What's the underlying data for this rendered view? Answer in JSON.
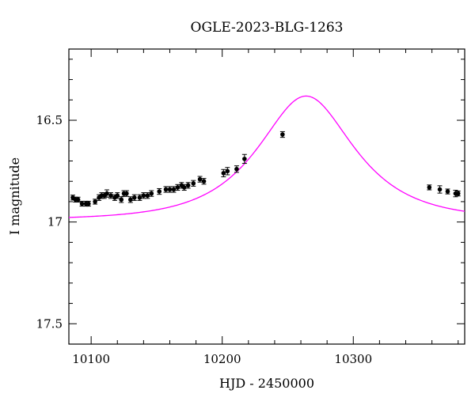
{
  "chart_data": {
    "type": "scatter",
    "title": "OGLE-2023-BLG-1263",
    "xlabel": "HJD - 2450000",
    "ylabel": "I magnitude",
    "xlim": [
      10083,
      10385
    ],
    "ylim": [
      17.6,
      16.15
    ],
    "y_inverted": true,
    "grid": false,
    "x_major_ticks": [
      10100,
      10200,
      10300
    ],
    "x_tick_labels": [
      "10100",
      "10200",
      "10300"
    ],
    "y_major_ticks": [
      16.5,
      17,
      17.5
    ],
    "y_tick_labels": [
      "16.5",
      "17",
      "17.5"
    ],
    "series": [
      {
        "kind": "data",
        "marker": "filled-circle-with-errorbar",
        "color": "#000000",
        "x": [
          10086,
          10088,
          10090,
          10093,
          10096,
          10098,
          10103,
          10106,
          10108,
          10110,
          10112,
          10115,
          10118,
          10120,
          10123,
          10125,
          10127,
          10130,
          10133,
          10137,
          10140,
          10143,
          10146,
          10152,
          10157,
          10160,
          10163,
          10166,
          10169,
          10171,
          10174,
          10178,
          10183,
          10186,
          10201,
          10204,
          10211,
          10217,
          10246,
          10358,
          10366,
          10372,
          10378,
          10380
        ],
        "y": [
          16.88,
          16.89,
          16.89,
          16.91,
          16.91,
          16.91,
          16.9,
          16.88,
          16.87,
          16.87,
          16.86,
          16.87,
          16.88,
          16.87,
          16.89,
          16.86,
          16.86,
          16.89,
          16.88,
          16.88,
          16.87,
          16.87,
          16.86,
          16.85,
          16.84,
          16.84,
          16.84,
          16.83,
          16.82,
          16.83,
          16.82,
          16.81,
          16.79,
          16.8,
          16.76,
          16.75,
          16.74,
          16.69,
          16.57,
          16.83,
          16.84,
          16.85,
          16.86,
          16.86
        ],
        "yerr": [
          0.012,
          0.012,
          0.012,
          0.012,
          0.012,
          0.012,
          0.012,
          0.014,
          0.014,
          0.014,
          0.018,
          0.014,
          0.014,
          0.014,
          0.014,
          0.014,
          0.014,
          0.014,
          0.014,
          0.014,
          0.014,
          0.014,
          0.014,
          0.014,
          0.014,
          0.014,
          0.014,
          0.014,
          0.014,
          0.014,
          0.014,
          0.014,
          0.014,
          0.014,
          0.018,
          0.018,
          0.016,
          0.022,
          0.014,
          0.012,
          0.018,
          0.012,
          0.016,
          0.012
        ]
      },
      {
        "kind": "model",
        "color": "#ff00ff",
        "model": "point-lens",
        "t0": 10264,
        "tE": 55,
        "u0": 0.66,
        "baseline_mag": 16.99
      }
    ]
  }
}
